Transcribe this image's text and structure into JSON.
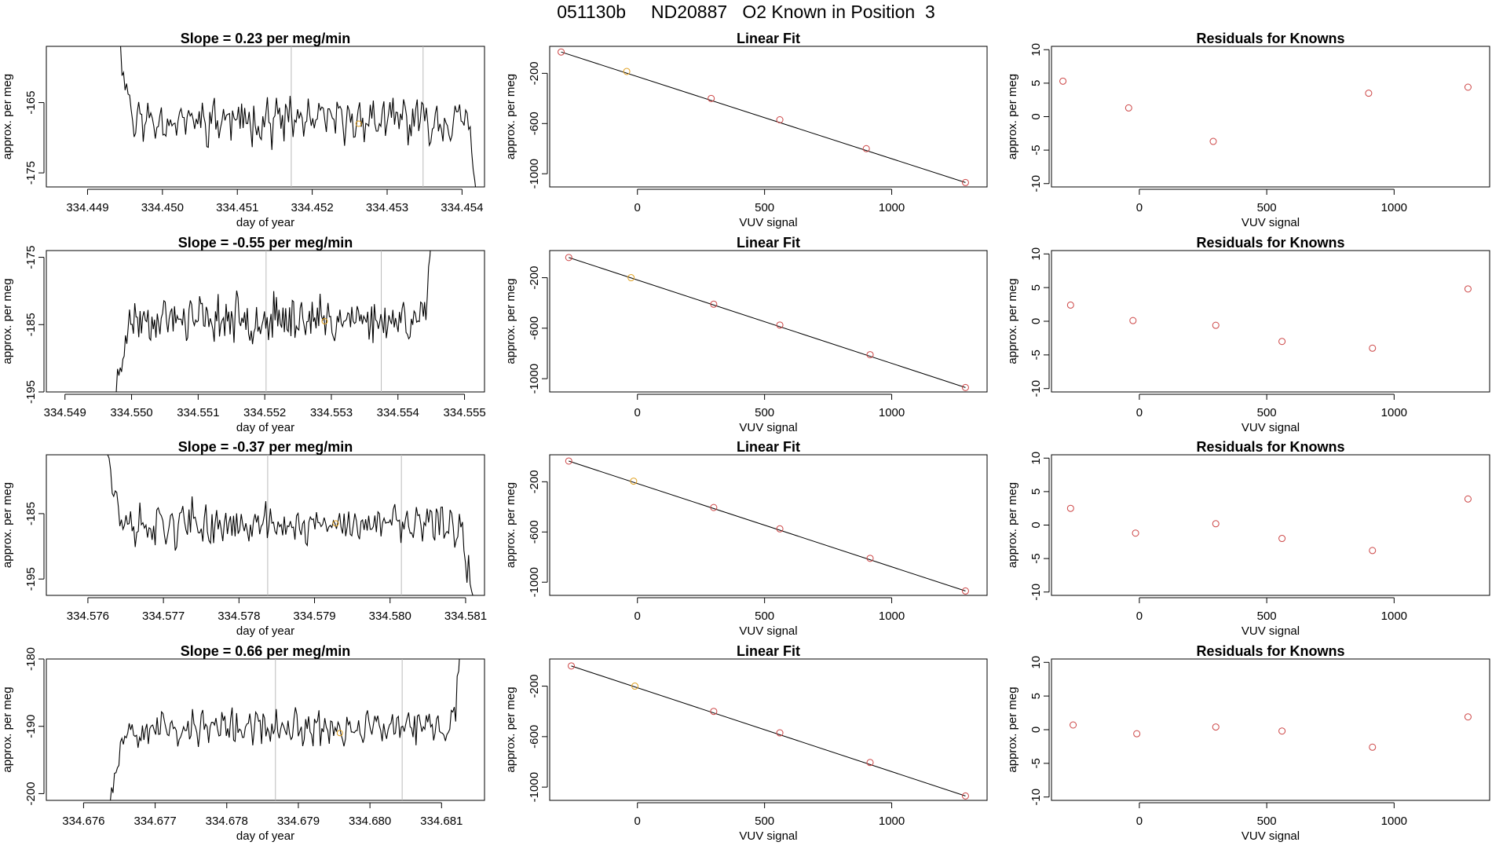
{
  "header": {
    "title": "051130b     ND20887   O2 Known in Position  3"
  },
  "style": {
    "trace_color": "#000000",
    "point_color": "#cc4444",
    "highlight_color": "#e0a020",
    "vline_color": "#bbbbbb"
  },
  "chart_data": [
    {
      "type": "line",
      "row": 0,
      "col": 0,
      "title": "Slope =  0.23  per meg/min",
      "xlabel": "day of year",
      "ylabel": "approx. per meg",
      "xlim": [
        334.44845,
        334.4543
      ],
      "ylim": [
        -177,
        -157
      ],
      "xticks": [
        334.449,
        334.45,
        334.451,
        334.452,
        334.453,
        334.454
      ],
      "xtick_labels": [
        "334.449",
        "334.450",
        "334.451",
        "334.452",
        "334.453",
        "334.454"
      ],
      "yticks": [
        -175,
        -165
      ],
      "ytick_labels": [
        "-175",
        "-165"
      ],
      "vlines": [
        334.45172,
        334.45348
      ],
      "highlight": {
        "x": 334.45262,
        "y": -168
      },
      "trace": {
        "x0": 334.44938,
        "x1": 334.45423,
        "base": -167.5,
        "amp": 2.2,
        "rise_start": -150,
        "rise_end": -185,
        "seed": 11
      }
    },
    {
      "type": "scatter",
      "row": 0,
      "col": 1,
      "title": "Linear Fit",
      "xlabel": "VUV signal",
      "ylabel": "approx. per meg",
      "xlim": [
        -345,
        1375
      ],
      "ylim": [
        -1105,
        15
      ],
      "xticks": [
        0,
        500,
        1000
      ],
      "xtick_labels": [
        "0",
        "500",
        "1000"
      ],
      "yticks": [
        -1000,
        -600,
        -200
      ],
      "ytick_labels": [
        "-1000",
        "-600",
        "-200"
      ],
      "fit_line": [
        [
          -300,
          -30
        ],
        [
          1290,
          -1070
        ]
      ],
      "points": [
        [
          -300,
          -30
        ],
        [
          -42,
          -185
        ],
        [
          290,
          -400
        ],
        [
          560,
          -570
        ],
        [
          900,
          -800
        ],
        [
          1290,
          -1070
        ]
      ],
      "highlight_index": 1
    },
    {
      "type": "scatter",
      "row": 0,
      "col": 2,
      "title": "Residuals for Knowns",
      "xlabel": "VUV signal",
      "ylabel": "approx. per meg",
      "xlim": [
        -345,
        1375
      ],
      "ylim": [
        -10.5,
        10.5
      ],
      "xticks": [
        0,
        500,
        1000
      ],
      "xtick_labels": [
        "0",
        "500",
        "1000"
      ],
      "yticks": [
        -10,
        -5,
        0,
        5,
        10
      ],
      "ytick_labels": [
        "-10",
        "-5",
        "0",
        "5",
        "10"
      ],
      "points": [
        [
          -300,
          5.3
        ],
        [
          -42,
          1.3
        ],
        [
          290,
          -3.7
        ],
        [
          900,
          3.5
        ],
        [
          1290,
          4.4
        ]
      ]
    },
    {
      "type": "line",
      "row": 1,
      "col": 0,
      "title": "Slope =  -0.55  per meg/min",
      "xlabel": "day of year",
      "ylabel": "approx. per meg",
      "xlim": [
        334.54872,
        334.5553
      ],
      "ylim": [
        -195,
        -174
      ],
      "xticks": [
        334.549,
        334.55,
        334.551,
        334.552,
        334.553,
        334.554,
        334.555
      ],
      "xtick_labels": [
        "334.549",
        "334.550",
        "334.551",
        "334.552",
        "334.553",
        "334.554",
        "334.555"
      ],
      "yticks": [
        -195,
        -185,
        -175
      ],
      "ytick_labels": [
        "-195",
        "-185",
        "-175"
      ],
      "vlines": [
        334.55202,
        334.55375
      ],
      "highlight": {
        "x": 334.5529,
        "y": -184.5
      },
      "trace": {
        "x0": 334.54975,
        "x1": 334.55452,
        "base": -184.2,
        "amp": 2.3,
        "rise_start": -198,
        "rise_end": -172,
        "seed": 23
      }
    },
    {
      "type": "scatter",
      "row": 1,
      "col": 1,
      "title": "Linear Fit",
      "xlabel": "VUV signal",
      "ylabel": "approx. per meg",
      "xlim": [
        -345,
        1375
      ],
      "ylim": [
        -1105,
        15
      ],
      "xticks": [
        0,
        500,
        1000
      ],
      "xtick_labels": [
        "0",
        "500",
        "1000"
      ],
      "yticks": [
        -1000,
        -600,
        -200
      ],
      "ytick_labels": [
        "-1000",
        "-600",
        "-200"
      ],
      "fit_line": [
        [
          -270,
          -40
        ],
        [
          1290,
          -1070
        ]
      ],
      "points": [
        [
          -270,
          -40
        ],
        [
          -25,
          -200
        ],
        [
          300,
          -410
        ],
        [
          560,
          -575
        ],
        [
          915,
          -810
        ],
        [
          1290,
          -1070
        ]
      ],
      "highlight_index": 1
    },
    {
      "type": "scatter",
      "row": 1,
      "col": 2,
      "title": "Residuals for Knowns",
      "xlabel": "VUV signal",
      "ylabel": "approx. per meg",
      "xlim": [
        -345,
        1375
      ],
      "ylim": [
        -10.5,
        10.5
      ],
      "xticks": [
        0,
        500,
        1000
      ],
      "xtick_labels": [
        "0",
        "500",
        "1000"
      ],
      "yticks": [
        -10,
        -5,
        0,
        5,
        10
      ],
      "ytick_labels": [
        "-10",
        "-5",
        "0",
        "5",
        "10"
      ],
      "points": [
        [
          -270,
          2.4
        ],
        [
          -25,
          0.1
        ],
        [
          300,
          -0.6
        ],
        [
          560,
          -3.0
        ],
        [
          915,
          -4.0
        ],
        [
          1290,
          4.8
        ]
      ]
    },
    {
      "type": "line",
      "row": 2,
      "col": 0,
      "title": "Slope =  -0.37  per meg/min",
      "xlabel": "day of year",
      "ylabel": "approx. per meg",
      "xlim": [
        334.57545,
        334.58125
      ],
      "ylim": [
        -197.5,
        -176
      ],
      "xticks": [
        334.576,
        334.577,
        334.578,
        334.579,
        334.58,
        334.581
      ],
      "xtick_labels": [
        "334.576",
        "334.577",
        "334.578",
        "334.579",
        "334.580",
        "334.581"
      ],
      "yticks": [
        -195,
        -185
      ],
      "ytick_labels": [
        "-195",
        "-185"
      ],
      "vlines": [
        334.57838,
        334.58015
      ],
      "highlight": {
        "x": 334.57928,
        "y": -186.5
      },
      "trace": {
        "x0": 334.57622,
        "x1": 334.5811,
        "base": -186.8,
        "amp": 2.4,
        "rise_start": -170,
        "rise_end": -200,
        "seed": 37
      }
    },
    {
      "type": "scatter",
      "row": 2,
      "col": 1,
      "title": "Linear Fit",
      "xlabel": "VUV signal",
      "ylabel": "approx. per meg",
      "xlim": [
        -345,
        1375
      ],
      "ylim": [
        -1105,
        15
      ],
      "xticks": [
        0,
        500,
        1000
      ],
      "xtick_labels": [
        "0",
        "500",
        "1000"
      ],
      "yticks": [
        -1000,
        -600,
        -200
      ],
      "ytick_labels": [
        "-1000",
        "-600",
        "-200"
      ],
      "fit_line": [
        [
          -270,
          -35
        ],
        [
          1290,
          -1070
        ]
      ],
      "points": [
        [
          -270,
          -35
        ],
        [
          -15,
          -195
        ],
        [
          300,
          -405
        ],
        [
          560,
          -575
        ],
        [
          915,
          -810
        ],
        [
          1290,
          -1070
        ]
      ],
      "highlight_index": 1
    },
    {
      "type": "scatter",
      "row": 2,
      "col": 2,
      "title": "Residuals for Knowns",
      "xlabel": "VUV signal",
      "ylabel": "approx. per meg",
      "xlim": [
        -345,
        1375
      ],
      "ylim": [
        -10.5,
        10.5
      ],
      "xticks": [
        0,
        500,
        1000
      ],
      "xtick_labels": [
        "0",
        "500",
        "1000"
      ],
      "yticks": [
        -10,
        -5,
        0,
        5,
        10
      ],
      "ytick_labels": [
        "-10",
        "-5",
        "0",
        "5",
        "10"
      ],
      "points": [
        [
          -270,
          2.5
        ],
        [
          -15,
          -1.2
        ],
        [
          300,
          0.2
        ],
        [
          560,
          -2.0
        ],
        [
          915,
          -3.8
        ],
        [
          1290,
          3.9
        ]
      ]
    },
    {
      "type": "line",
      "row": 3,
      "col": 0,
      "title": "Slope =  0.66  per meg/min",
      "xlabel": "day of year",
      "ylabel": "approx. per meg",
      "xlim": [
        334.67548,
        334.6816
      ],
      "ylim": [
        -201,
        -180
      ],
      "xticks": [
        334.676,
        334.677,
        334.678,
        334.679,
        334.68,
        334.681
      ],
      "xtick_labels": [
        "334.676",
        "334.677",
        "334.678",
        "334.679",
        "334.680",
        "334.681"
      ],
      "yticks": [
        -200,
        -190,
        -180
      ],
      "ytick_labels": [
        "-200",
        "-190",
        "-180"
      ],
      "vlines": [
        334.67868,
        334.68045
      ],
      "highlight": {
        "x": 334.67958,
        "y": -191
      },
      "trace": {
        "x0": 334.67635,
        "x1": 334.68128,
        "base": -190.3,
        "amp": 2.0,
        "rise_start": -203,
        "rise_end": -178,
        "seed": 53
      }
    },
    {
      "type": "scatter",
      "row": 3,
      "col": 1,
      "title": "Linear Fit",
      "xlabel": "VUV signal",
      "ylabel": "approx. per meg",
      "xlim": [
        -345,
        1375
      ],
      "ylim": [
        -1105,
        15
      ],
      "xticks": [
        0,
        500,
        1000
      ],
      "xtick_labels": [
        "0",
        "500",
        "1000"
      ],
      "yticks": [
        -1000,
        -600,
        -200
      ],
      "ytick_labels": [
        "-1000",
        "-600",
        "-200"
      ],
      "fit_line": [
        [
          -260,
          -40
        ],
        [
          1290,
          -1070
        ]
      ],
      "points": [
        [
          -260,
          -40
        ],
        [
          -10,
          -200
        ],
        [
          300,
          -400
        ],
        [
          560,
          -570
        ],
        [
          915,
          -805
        ],
        [
          1290,
          -1070
        ]
      ],
      "highlight_index": 1
    },
    {
      "type": "scatter",
      "row": 3,
      "col": 2,
      "title": "Residuals for Knowns",
      "xlabel": "VUV signal",
      "ylabel": "approx. per meg",
      "xlim": [
        -345,
        1375
      ],
      "ylim": [
        -10.5,
        10.5
      ],
      "xticks": [
        0,
        500,
        1000
      ],
      "xtick_labels": [
        "0",
        "500",
        "1000"
      ],
      "yticks": [
        -10,
        -5,
        0,
        5,
        10
      ],
      "ytick_labels": [
        "-10",
        "-5",
        "0",
        "5",
        "10"
      ],
      "points": [
        [
          -260,
          0.7
        ],
        [
          -10,
          -0.6
        ],
        [
          300,
          0.4
        ],
        [
          560,
          -0.2
        ],
        [
          915,
          -2.6
        ],
        [
          1290,
          1.9
        ]
      ]
    }
  ]
}
